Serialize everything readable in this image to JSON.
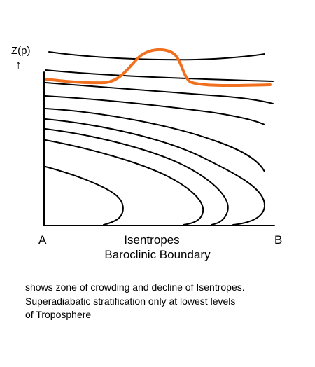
{
  "labels": {
    "y_axis": "Z(p)",
    "y_arrow": "↑",
    "left_end": "A",
    "right_end": "B",
    "title_line1": "Isentropes",
    "title_line2": "Baroclinic Boundary"
  },
  "caption": {
    "line1": "shows zone of crowding and decline of Isentropes.",
    "line2": "Superadiabatic stratification only at lowest levels",
    "line3": "of Troposphere"
  },
  "colors": {
    "isentrope": "#000000",
    "highlight_curve": "#f07020",
    "axes": "#000000"
  }
}
